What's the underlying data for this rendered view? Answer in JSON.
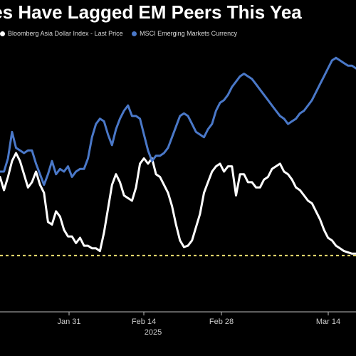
{
  "title": "ies Have Lagged EM Peers This Yea",
  "legend": [
    {
      "label": "Bloomberg Asia Dollar Index - Last Price",
      "color": "#ffffff"
    },
    {
      "label": "MSCI Emerging Markets Currency",
      "color": "#4a78c8"
    }
  ],
  "chart_data": {
    "type": "line",
    "title": "ies Have Lagged EM Peers This Yea",
    "x_ticks": [
      "Jan 31",
      "Feb 14",
      "Feb 28",
      "Mar 14"
    ],
    "x_sublabel": "2025",
    "x": [
      0,
      1,
      2,
      3,
      4,
      5,
      6,
      7,
      8,
      9,
      10,
      11,
      12,
      13,
      14,
      15,
      16,
      17,
      18,
      19,
      20,
      21,
      22,
      23,
      24,
      25,
      26,
      27,
      28,
      29,
      30,
      31,
      32,
      33,
      34,
      35,
      36,
      37,
      38,
      39,
      40,
      41,
      42,
      43,
      44,
      45,
      46,
      47,
      48,
      49,
      50,
      51,
      52,
      53,
      54,
      55,
      56,
      57,
      58,
      59,
      60,
      61,
      62,
      63,
      64,
      65,
      66,
      67,
      68,
      69,
      70,
      71,
      72,
      73,
      74,
      75,
      76,
      77,
      78,
      79,
      80,
      81,
      82,
      83,
      84,
      85,
      86,
      87,
      88,
      89
    ],
    "series": [
      {
        "name": "Bloomberg Asia Dollar Index - Last Price",
        "color": "#ffffff",
        "values": [
          3,
          2.5,
          3,
          3.6,
          3.9,
          3.6,
          3.1,
          2.6,
          2.8,
          3.2,
          2.7,
          2.4,
          1.3,
          1.2,
          1.7,
          1.5,
          1,
          0.75,
          0.75,
          0.5,
          0.7,
          0.4,
          0.4,
          0.3,
          0.3,
          0.2,
          0.9,
          1.8,
          2.7,
          3.1,
          2.8,
          2.3,
          2.2,
          2.1,
          2.6,
          3.5,
          3.7,
          3.5,
          3.7,
          3.1,
          3,
          2.7,
          2.4,
          1.9,
          1.2,
          0.6,
          0.35,
          0.4,
          0.6,
          1.1,
          1.6,
          2.4,
          2.8,
          3.2,
          3.4,
          3.5,
          3.2,
          3.4,
          3.4,
          2.3,
          3.1,
          3.1,
          2.8,
          2.8,
          2.6,
          2.6,
          2.9,
          3,
          3.3,
          3.4,
          3.5,
          3.2,
          3.1,
          2.9,
          2.6,
          2.5,
          2.3,
          2.1,
          2.0,
          1.7,
          1.4,
          1.0,
          0.7,
          0.6,
          0.4,
          0.3,
          0.2,
          0.15,
          0.1,
          0.1
        ]
      },
      {
        "name": "MSCI Emerging Markets Currency",
        "color": "#4a78c8",
        "values": [
          3.2,
          3.2,
          3.7,
          4.7,
          4.1,
          4,
          3.9,
          4,
          4,
          3.5,
          3.1,
          2.7,
          3.1,
          3.6,
          3.1,
          3.3,
          3.2,
          3.4,
          3,
          3.2,
          3.3,
          3.3,
          3.7,
          4.5,
          5,
          5.2,
          5.1,
          4.6,
          4.2,
          4.8,
          5.2,
          5.5,
          5.7,
          5.3,
          5.3,
          5.2,
          4.6,
          4,
          3.6,
          3.8,
          3.8,
          3.9,
          4.1,
          4.5,
          4.9,
          5.3,
          5.4,
          5.3,
          5,
          4.7,
          4.6,
          4.5,
          4.8,
          5.0,
          5.5,
          5.8,
          5.9,
          6.1,
          6.4,
          6.6,
          6.8,
          6.9,
          6.8,
          6.7,
          6.5,
          6.3,
          6.1,
          5.9,
          5.7,
          5.5,
          5.3,
          5.2,
          5.0,
          5.1,
          5.2,
          5.4,
          5.5,
          5.7,
          5.9,
          6.2,
          6.5,
          6.8,
          7.1,
          7.4,
          7.5,
          7.4,
          7.3,
          7.2,
          7.2,
          7.1
        ]
      }
    ],
    "reference_line": {
      "value": 0.3,
      "style": "dashed",
      "color": "#f0e070"
    },
    "grid": false,
    "legend_position": "top-left"
  }
}
